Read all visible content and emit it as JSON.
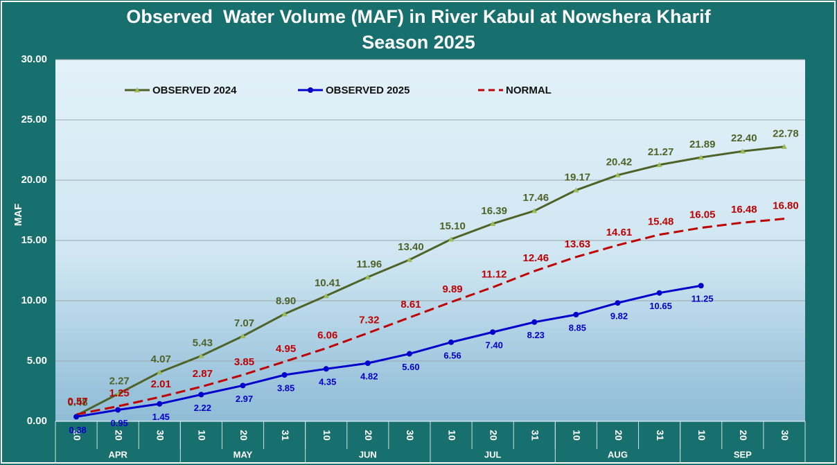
{
  "chart_data": {
    "type": "line",
    "title": "Observed  Water Volume (MAF) in River Kabul at Nowshera Kharif Season 2025",
    "y_label": "MAF",
    "categories": [
      "10",
      "20",
      "30",
      "10",
      "20",
      "31",
      "10",
      "20",
      "30",
      "10",
      "20",
      "31",
      "10",
      "20",
      "31",
      "10",
      "20",
      "30"
    ],
    "category_groups": [
      "APR",
      "MAY",
      "JUN",
      "JUL",
      "AUG",
      "SEP"
    ],
    "ylim": [
      0,
      30
    ],
    "yticks": [
      {
        "value": 0,
        "label": "0.00"
      },
      {
        "value": 5,
        "label": "5.00"
      },
      {
        "value": 10,
        "label": "10.00"
      },
      {
        "value": 15,
        "label": "15.00"
      },
      {
        "value": 20,
        "label": "20.00"
      },
      {
        "value": 25,
        "label": "25.00"
      },
      {
        "value": 30,
        "label": "30.00"
      }
    ],
    "grid": true,
    "legend": "top",
    "series": [
      {
        "name": "OBSERVED 2024",
        "color": "#4f6228",
        "marker_color": "#9bbb59",
        "marker": "triangle",
        "values": [
          0.48,
          2.27,
          4.07,
          5.43,
          7.07,
          8.9,
          10.41,
          11.96,
          13.4,
          15.1,
          16.39,
          17.46,
          19.17,
          20.42,
          21.27,
          21.89,
          22.4,
          22.78
        ],
        "value_labels": [
          "0.48",
          "2.27",
          "4.07",
          "5.43",
          "7.07",
          "8.90",
          "10.41",
          "11.96",
          "13.40",
          "15.10",
          "16.39",
          "17.46",
          "19.17",
          "20.42",
          "21.27",
          "21.89",
          "22.40",
          "22.78"
        ]
      },
      {
        "name": "OBSERVED 2025",
        "color": "#0000cc",
        "marker_color": "#0000cc",
        "marker": "circle",
        "values": [
          0.38,
          0.95,
          1.45,
          2.22,
          2.97,
          3.85,
          4.35,
          4.82,
          5.6,
          6.56,
          7.4,
          8.23,
          8.85,
          9.82,
          10.65,
          11.25,
          null,
          null
        ],
        "value_labels": [
          "0.38",
          "0.95",
          "1.45",
          "2.22",
          "2.97",
          "3.85",
          "4.35",
          "4.82",
          "5.60",
          "6.56",
          "7.40",
          "8.23",
          "8.85",
          "9.82",
          "10.65",
          "11.25",
          null,
          null
        ]
      },
      {
        "name": "NORMAL",
        "color": "#c00000",
        "dashed": true,
        "values": [
          0.57,
          1.25,
          2.01,
          2.87,
          3.85,
          4.95,
          6.06,
          7.32,
          8.61,
          9.89,
          11.12,
          12.46,
          13.63,
          14.61,
          15.48,
          16.05,
          16.48,
          16.8
        ],
        "value_labels": [
          "0.57",
          "1.25",
          "2.01",
          "2.87",
          "3.85",
          "4.95",
          "6.06",
          "7.32",
          "8.61",
          "9.89",
          "11.12",
          "12.46",
          "13.63",
          "14.61",
          "15.48",
          "16.05",
          "16.48",
          "16.80"
        ]
      }
    ]
  }
}
